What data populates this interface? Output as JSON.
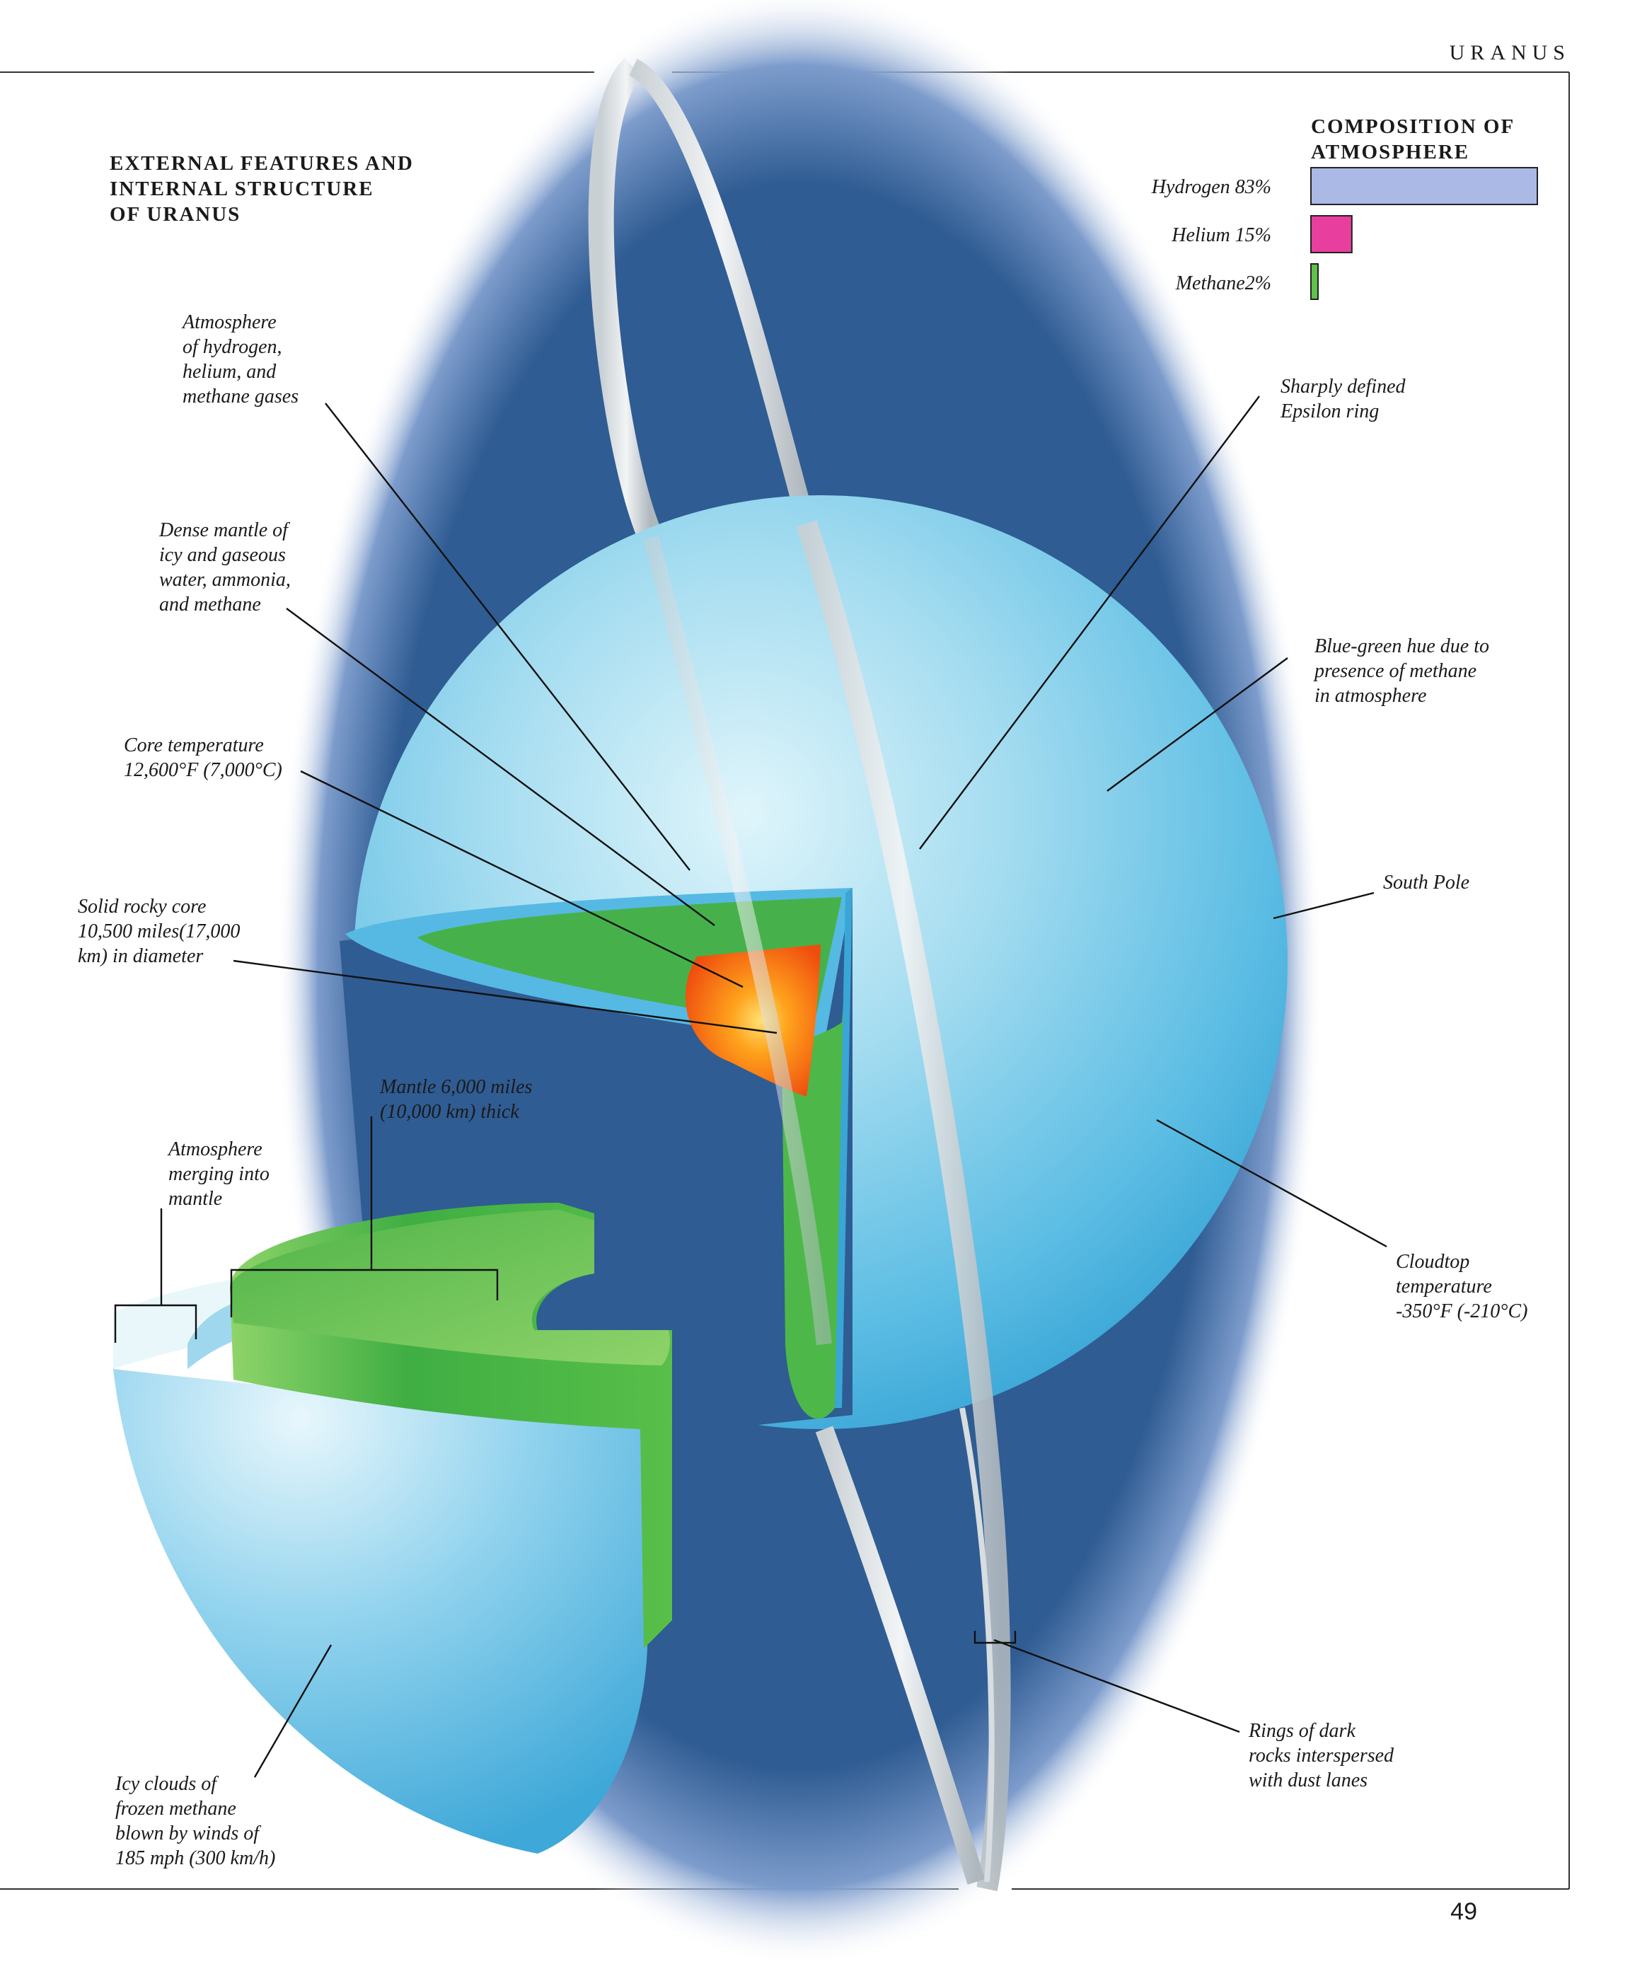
{
  "header": {
    "section": "URANUS",
    "page_number": "49"
  },
  "title": [
    "EXTERNAL FEATURES AND",
    "INTERNAL STRUCTURE",
    "OF URANUS"
  ],
  "composition": {
    "title": [
      "COMPOSITION OF",
      "ATMOSPHERE"
    ],
    "items": [
      {
        "label": "Hydrogen 83%",
        "percent": 83,
        "color": "#aab9e6"
      },
      {
        "label": "Helium 15%",
        "percent": 15,
        "color": "#e83f9e"
      },
      {
        "label": "Methane2%",
        "percent": 2,
        "color": "#5fc24a"
      }
    ]
  },
  "labels": {
    "atmosphere": [
      "Atmosphere",
      "of  hydrogen,",
      "helium, and",
      "methane gases"
    ],
    "mantle_dense": [
      "Dense mantle of",
      "icy and gaseous",
      "water, ammonia,",
      "and methane"
    ],
    "core_temp": [
      "Core temperature",
      "12,600°F (7,000°C)"
    ],
    "rocky_core": [
      "Solid rocky core",
      "10,500 miles(17,000",
      "km) in diameter"
    ],
    "mantle_thick": [
      "Mantle 6,000 miles",
      "(10,000 km) thick"
    ],
    "atm_merging": [
      "Atmosphere",
      "merging into",
      "mantle"
    ],
    "icy_clouds": [
      "Icy clouds of",
      "frozen methane",
      "blown by winds of",
      "185 mph (300 km/h)"
    ],
    "epsilon": [
      "Sharply defined",
      "Epsilon ring"
    ],
    "blue_green": [
      "Blue-green hue due to",
      "presence of  methane",
      "in atmosphere"
    ],
    "south_pole": [
      "South Pole"
    ],
    "cloudtop": [
      "Cloudtop",
      "temperature",
      "-350°F (-210°C)"
    ],
    "rings_dark": [
      "Rings of  dark",
      "rocks interspersed",
      "with dust lanes"
    ]
  },
  "colors": {
    "space": "#2f5c93",
    "planet_light": "#d4f0f8",
    "planet_mid": "#86d0ea",
    "planet_dark": "#35a8d6",
    "mantle_green": "#47b84a",
    "core_orange": "#f25a10",
    "core_yellow": "#ffc21a"
  }
}
